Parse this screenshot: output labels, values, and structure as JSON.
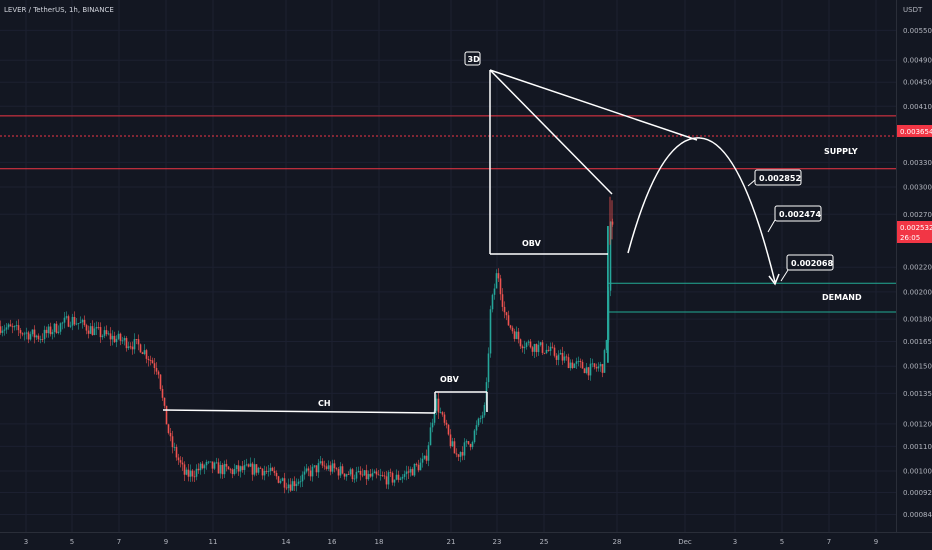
{
  "header": {
    "symbol": "LEVER / TetherUS, 1h, BINANCE"
  },
  "axis": {
    "unit": "USDT",
    "current_price_label": "0.002532",
    "countdown": "26:05",
    "resistance_label": "0.003654"
  },
  "colors": {
    "background": "#131722",
    "up": "#26a69a",
    "down": "#ef5350",
    "supply_line": "#f23645",
    "demand_line": "#22ab94",
    "annotation": "#ffffff"
  },
  "annotations": {
    "supply": "SUPPLY",
    "demand": "DEMAND",
    "ch": "CH",
    "obv_small": "OBV",
    "obv_large": "OBV",
    "three_d": "3D",
    "target1": "0.002852",
    "target2": "0.002474",
    "target3": "0.002068"
  },
  "chart_data": {
    "type": "candlestick",
    "title": "LEVER / TetherUS, 1h, BINANCE",
    "y_unit": "USDT",
    "y_scale": "log",
    "ylim": [
      0.00078,
      0.0062
    ],
    "y_ticks": [
      "0.005500",
      "0.004900",
      "0.004500",
      "0.004100",
      "0.003654",
      "0.003300",
      "0.003000",
      "0.002700",
      "0.002532",
      "0.002200",
      "0.002000",
      "0.001800",
      "0.001650",
      "0.001500",
      "0.001350",
      "0.001200",
      "0.001100",
      "0.001000",
      "0.000920",
      "0.000845"
    ],
    "x_ticks": [
      "3",
      "5",
      "7",
      "9",
      "11",
      "14",
      "16",
      "18",
      "21",
      "23",
      "25",
      "28",
      "Dec",
      "3",
      "5",
      "7",
      "9"
    ],
    "price_path": [
      [
        0,
        0.00175
      ],
      [
        40,
        0.00168
      ],
      [
        70,
        0.0018
      ],
      [
        100,
        0.0017
      ],
      [
        140,
        0.00162
      ],
      [
        158,
        0.00148
      ],
      [
        163,
        0.00128
      ],
      [
        170,
        0.00112
      ],
      [
        185,
        0.00098
      ],
      [
        205,
        0.00102
      ],
      [
        230,
        0.001
      ],
      [
        260,
        0.00101
      ],
      [
        290,
        0.00095
      ],
      [
        320,
        0.00102
      ],
      [
        360,
        0.00098
      ],
      [
        395,
        0.00097
      ],
      [
        410,
        0.001
      ],
      [
        425,
        0.00104
      ],
      [
        435,
        0.00132
      ],
      [
        445,
        0.00118
      ],
      [
        455,
        0.00106
      ],
      [
        470,
        0.00112
      ],
      [
        485,
        0.00128
      ],
      [
        490,
        0.00185
      ],
      [
        497,
        0.00218
      ],
      [
        505,
        0.0018
      ],
      [
        520,
        0.00165
      ],
      [
        545,
        0.0016
      ],
      [
        570,
        0.00152
      ],
      [
        590,
        0.00148
      ],
      [
        603,
        0.0015
      ],
      [
        607,
        0.00175
      ],
      [
        610,
        0.00258
      ],
      [
        613,
        0.00253
      ]
    ],
    "levels": [
      {
        "price": 0.00395,
        "kind": "supply"
      },
      {
        "price": 0.003654,
        "kind": "supply"
      },
      {
        "price": 0.00322,
        "kind": "supply"
      },
      {
        "price": 0.002068,
        "kind": "demand"
      },
      {
        "price": 0.00185,
        "kind": "demand"
      }
    ],
    "targets": [
      0.002852,
      0.002474,
      0.002068
    ],
    "current_price": 0.002532
  }
}
